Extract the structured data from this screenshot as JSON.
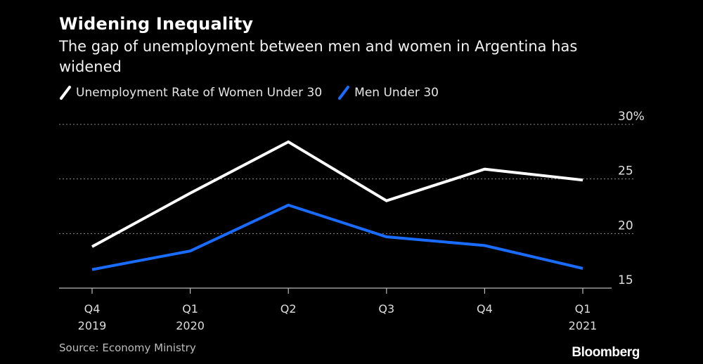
{
  "title": "Widening Inequality",
  "subtitle": "The gap of unemployment between men and women in Argentina has widened",
  "source": "Source: Economy Ministry",
  "brand": "Bloomberg",
  "colors": {
    "women": "#ffffff",
    "men": "#1a6cff",
    "grid": "#8a8a8a",
    "axis": "#bbbbbb"
  },
  "chart_data": {
    "type": "line",
    "categories": [
      {
        "top": "Q4",
        "bottom": "2019"
      },
      {
        "top": "Q1",
        "bottom": "2020"
      },
      {
        "top": "Q2",
        "bottom": ""
      },
      {
        "top": "Q3",
        "bottom": ""
      },
      {
        "top": "Q4",
        "bottom": ""
      },
      {
        "top": "Q1",
        "bottom": "2021"
      }
    ],
    "series": [
      {
        "name": "Unemployment Rate of Women Under 30",
        "values": [
          18.8,
          23.7,
          28.4,
          23.0,
          25.9,
          24.9
        ]
      },
      {
        "name": "Men Under 30",
        "values": [
          16.7,
          18.4,
          22.6,
          19.7,
          18.9,
          16.8
        ]
      }
    ],
    "yticks": [
      {
        "value": 30,
        "label": "30%"
      },
      {
        "value": 25,
        "label": "25"
      },
      {
        "value": 20,
        "label": "20"
      },
      {
        "value": 15,
        "label": "15"
      }
    ],
    "ylim": [
      15,
      30
    ],
    "xlabel": "",
    "ylabel": ""
  }
}
